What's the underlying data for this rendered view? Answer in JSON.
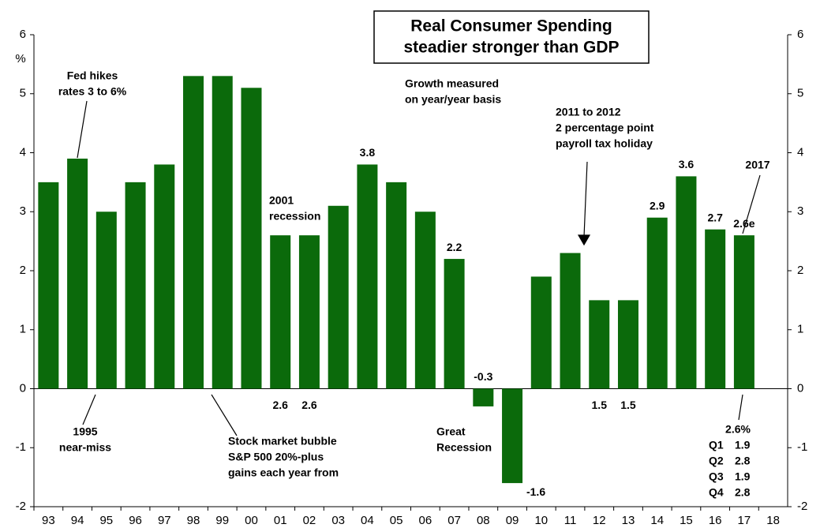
{
  "chart_data": {
    "type": "bar",
    "title": [
      "Real Consumer Spending",
      "steadier stronger than GDP"
    ],
    "y_label": "%",
    "categories": [
      "93",
      "94",
      "95",
      "96",
      "97",
      "98",
      "99",
      "00",
      "01",
      "02",
      "03",
      "04",
      "05",
      "06",
      "07",
      "08",
      "09",
      "10",
      "11",
      "12",
      "13",
      "14",
      "15",
      "16",
      "17",
      "18"
    ],
    "values": [
      3.5,
      3.9,
      3.0,
      3.5,
      3.8,
      5.3,
      5.3,
      5.1,
      2.6,
      2.6,
      3.1,
      3.8,
      3.5,
      3.0,
      2.2,
      -0.3,
      -1.6,
      1.9,
      2.3,
      1.5,
      1.5,
      2.9,
      3.6,
      2.7,
      2.6,
      null
    ],
    "value_labels": [
      null,
      null,
      null,
      null,
      null,
      null,
      null,
      null,
      "2.6",
      "2.6",
      null,
      "3.8",
      null,
      null,
      "2.2",
      "-0.3",
      "-1.6",
      null,
      null,
      "1.5",
      "1.5",
      "2.9",
      "3.6",
      "2.7",
      "2.6e",
      null
    ],
    "color": "#0b6a0b",
    "ylim": [
      -2,
      6
    ],
    "yticks": [
      -2,
      -1,
      0,
      1,
      2,
      3,
      4,
      5,
      6
    ],
    "y2lim": [
      -2,
      6
    ],
    "y2ticks": [
      -2,
      -1,
      0,
      1,
      2,
      3,
      4,
      5,
      6
    ],
    "annotations": [
      {
        "lines": [
          "Fed hikes",
          "rates 3 to 6%"
        ]
      },
      {
        "lines": [
          "1995",
          "near-miss"
        ]
      },
      {
        "lines": [
          "Stock market bubble",
          "S&P 500 20%-plus",
          "gains each year from"
        ]
      },
      {
        "lines": [
          "2001",
          "recession"
        ]
      },
      {
        "lines": [
          "Growth measured",
          "on year/year basis"
        ]
      },
      {
        "lines": [
          "Great",
          "Recession"
        ]
      },
      {
        "lines": [
          "2011 to 2012",
          "2 percentage point",
          "payroll tax holiday"
        ]
      },
      {
        "lines": [
          "2017"
        ]
      },
      {
        "lines": [
          "2.6%"
        ]
      }
    ],
    "quarters": [
      {
        "name": "Q1",
        "value": 1.9
      },
      {
        "name": "Q2",
        "value": 2.8
      },
      {
        "name": "Q3",
        "value": 1.9
      },
      {
        "name": "Q4",
        "value": 2.8
      }
    ]
  }
}
